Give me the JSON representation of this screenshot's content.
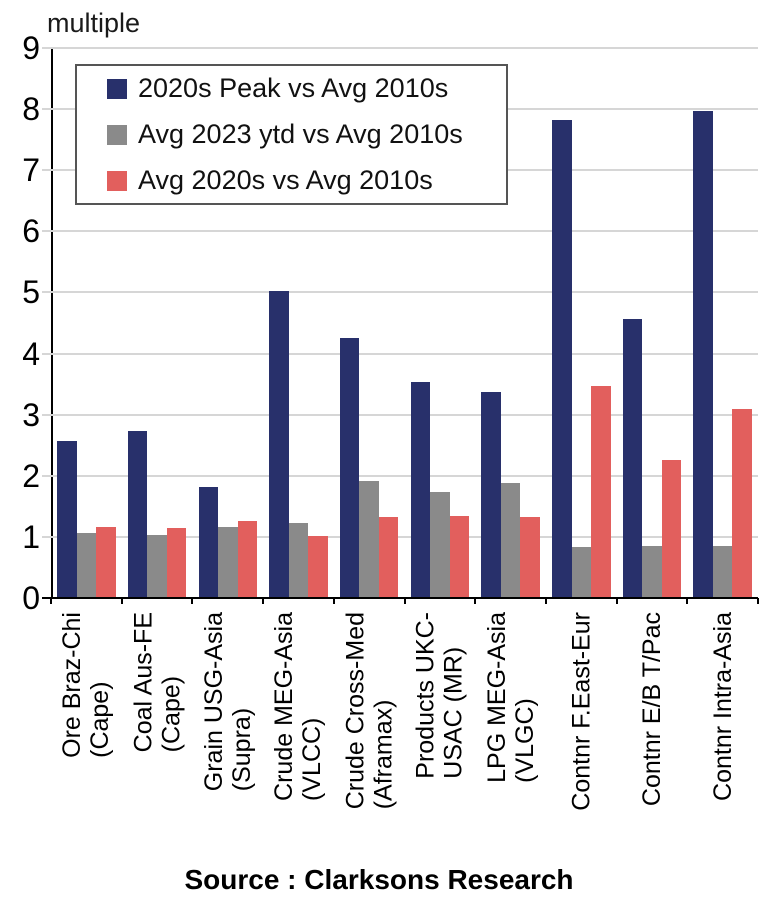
{
  "chart_data": {
    "type": "bar",
    "ylabel": "multiple",
    "ylim": [
      0,
      9
    ],
    "yticks": [
      0,
      1,
      2,
      3,
      4,
      5,
      6,
      7,
      8,
      9
    ],
    "grid": true,
    "grid_color": "#d6d6d6",
    "axis_color": "#000000",
    "legend_position": "top-left",
    "categories": [
      {
        "label": "Ore Braz-Chi (Cape)",
        "lines": [
          "Ore Braz-Chi",
          "(Cape)"
        ]
      },
      {
        "label": "Coal Aus-FE (Cape)",
        "lines": [
          "Coal Aus-FE",
          "(Cape)"
        ]
      },
      {
        "label": "Grain USG-Asia (Supra)",
        "lines": [
          "Grain USG-Asia",
          "(Supra)"
        ]
      },
      {
        "label": "Crude MEG-Asia (VLCC)",
        "lines": [
          "Crude MEG-Asia",
          "(VLCC)"
        ]
      },
      {
        "label": "Crude Cross-Med (Aframax)",
        "lines": [
          "Crude Cross-Med",
          "(Aframax)"
        ]
      },
      {
        "label": "Products UKC-USAC (MR)",
        "lines": [
          "Products UKC-",
          "USAC (MR)"
        ]
      },
      {
        "label": "LPG MEG-Asia (VLGC)",
        "lines": [
          "LPG MEG-Asia",
          "(VLGC)"
        ]
      },
      {
        "label": "Contnr F.East-Eur",
        "lines": [
          "Contnr F.East-Eur"
        ]
      },
      {
        "label": "Contnr E/B T/Pac",
        "lines": [
          "Contnr E/B T/Pac"
        ]
      },
      {
        "label": "Contnr Intra-Asia",
        "lines": [
          "Contnr Intra-Asia"
        ]
      }
    ],
    "series": [
      {
        "name": "2020s Peak vs Avg 2010s",
        "color": "#28306b",
        "values": [
          2.57,
          2.74,
          1.82,
          5.02,
          4.25,
          3.53,
          3.37,
          7.82,
          4.57,
          7.97
        ]
      },
      {
        "name": "Avg 2023 ytd vs Avg 2010s",
        "color": "#8a8a8a",
        "values": [
          1.07,
          1.03,
          1.17,
          1.23,
          1.92,
          1.74,
          1.89,
          0.83,
          0.85,
          0.85
        ]
      },
      {
        "name": "Avg 2020s vs Avg 2010s",
        "color": "#e25f5d",
        "values": [
          1.17,
          1.14,
          1.26,
          1.02,
          1.32,
          1.35,
          1.33,
          3.47,
          2.26,
          3.09
        ]
      }
    ]
  },
  "footer": {
    "source": "Source : Clarksons Research"
  }
}
